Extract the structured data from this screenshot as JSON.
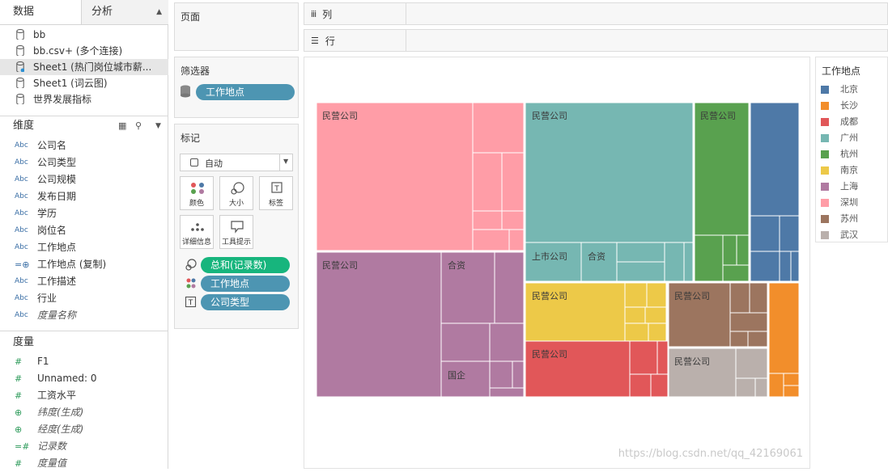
{
  "tabs": {
    "data": "数据",
    "analysis": "分析"
  },
  "datasources": [
    {
      "label": "bb",
      "selected": false
    },
    {
      "label": "bb.csv+ (多个连接)",
      "selected": false
    },
    {
      "label": "Sheet1 (热门岗位城市薪...",
      "selected": true
    },
    {
      "label": "Sheet1 (词云图)",
      "selected": false
    },
    {
      "label": "世界发展指标",
      "selected": false
    }
  ],
  "dimensions": {
    "title": "维度",
    "fields": [
      {
        "type": "Abc",
        "name": "公司名",
        "italic": false
      },
      {
        "type": "Abc",
        "name": "公司类型",
        "italic": false
      },
      {
        "type": "Abc",
        "name": "公司规模",
        "italic": false
      },
      {
        "type": "Abc",
        "name": "发布日期",
        "italic": false
      },
      {
        "type": "Abc",
        "name": "学历",
        "italic": false
      },
      {
        "type": "Abc",
        "name": "岗位名",
        "italic": false
      },
      {
        "type": "Abc",
        "name": "工作地点",
        "italic": false
      },
      {
        "type": "=⊕",
        "name": "工作地点 (复制)",
        "italic": false
      },
      {
        "type": "Abc",
        "name": "工作描述",
        "italic": false
      },
      {
        "type": "Abc",
        "name": "行业",
        "italic": false
      },
      {
        "type": "Abc",
        "name": "度量名称",
        "italic": true
      }
    ]
  },
  "measures": {
    "title": "度量",
    "fields": [
      {
        "type": "#",
        "name": "F1",
        "italic": false
      },
      {
        "type": "#",
        "name": "Unnamed: 0",
        "italic": false
      },
      {
        "type": "#",
        "name": "工资水平",
        "italic": false
      },
      {
        "type": "⊕",
        "name": "纬度(生成)",
        "italic": true
      },
      {
        "type": "⊕",
        "name": "经度(生成)",
        "italic": true
      },
      {
        "type": "=#",
        "name": "记录数",
        "italic": true
      },
      {
        "type": "#",
        "name": "度量值",
        "italic": true
      }
    ]
  },
  "pages": {
    "title": "页面"
  },
  "filters": {
    "title": "筛选器",
    "pill": "工作地点"
  },
  "marks": {
    "title": "标记",
    "type_select": "自动",
    "cards": [
      "颜色",
      "大小",
      "标签",
      "详细信息",
      "工具提示"
    ],
    "pills": [
      {
        "label": "总和(记录数)",
        "color": "#17b57d",
        "icon": "size"
      },
      {
        "label": "工作地点",
        "color": "#4d95b2",
        "icon": "color"
      },
      {
        "label": "公司类型",
        "color": "#4d95b2",
        "icon": "label"
      }
    ]
  },
  "shelves": {
    "columns": "列",
    "rows": "行"
  },
  "legend": {
    "title": "工作地点",
    "items": [
      {
        "name": "北京",
        "color": "#4e79a7"
      },
      {
        "name": "长沙",
        "color": "#f28e2b"
      },
      {
        "name": "成都",
        "color": "#e15759"
      },
      {
        "name": "广州",
        "color": "#76b7b2"
      },
      {
        "name": "杭州",
        "color": "#59a14f"
      },
      {
        "name": "南京",
        "color": "#edc948"
      },
      {
        "name": "上海",
        "color": "#b07aa1"
      },
      {
        "name": "深圳",
        "color": "#ff9da7"
      },
      {
        "name": "苏州",
        "color": "#9c755f"
      },
      {
        "name": "武汉",
        "color": "#bab0ac"
      }
    ]
  },
  "treemap_labels": {
    "private": "民营公司",
    "listed": "上市公司",
    "jv": "合资",
    "soe": "国企"
  },
  "watermark": "https://blog.csdn.net/qq_42169061"
}
